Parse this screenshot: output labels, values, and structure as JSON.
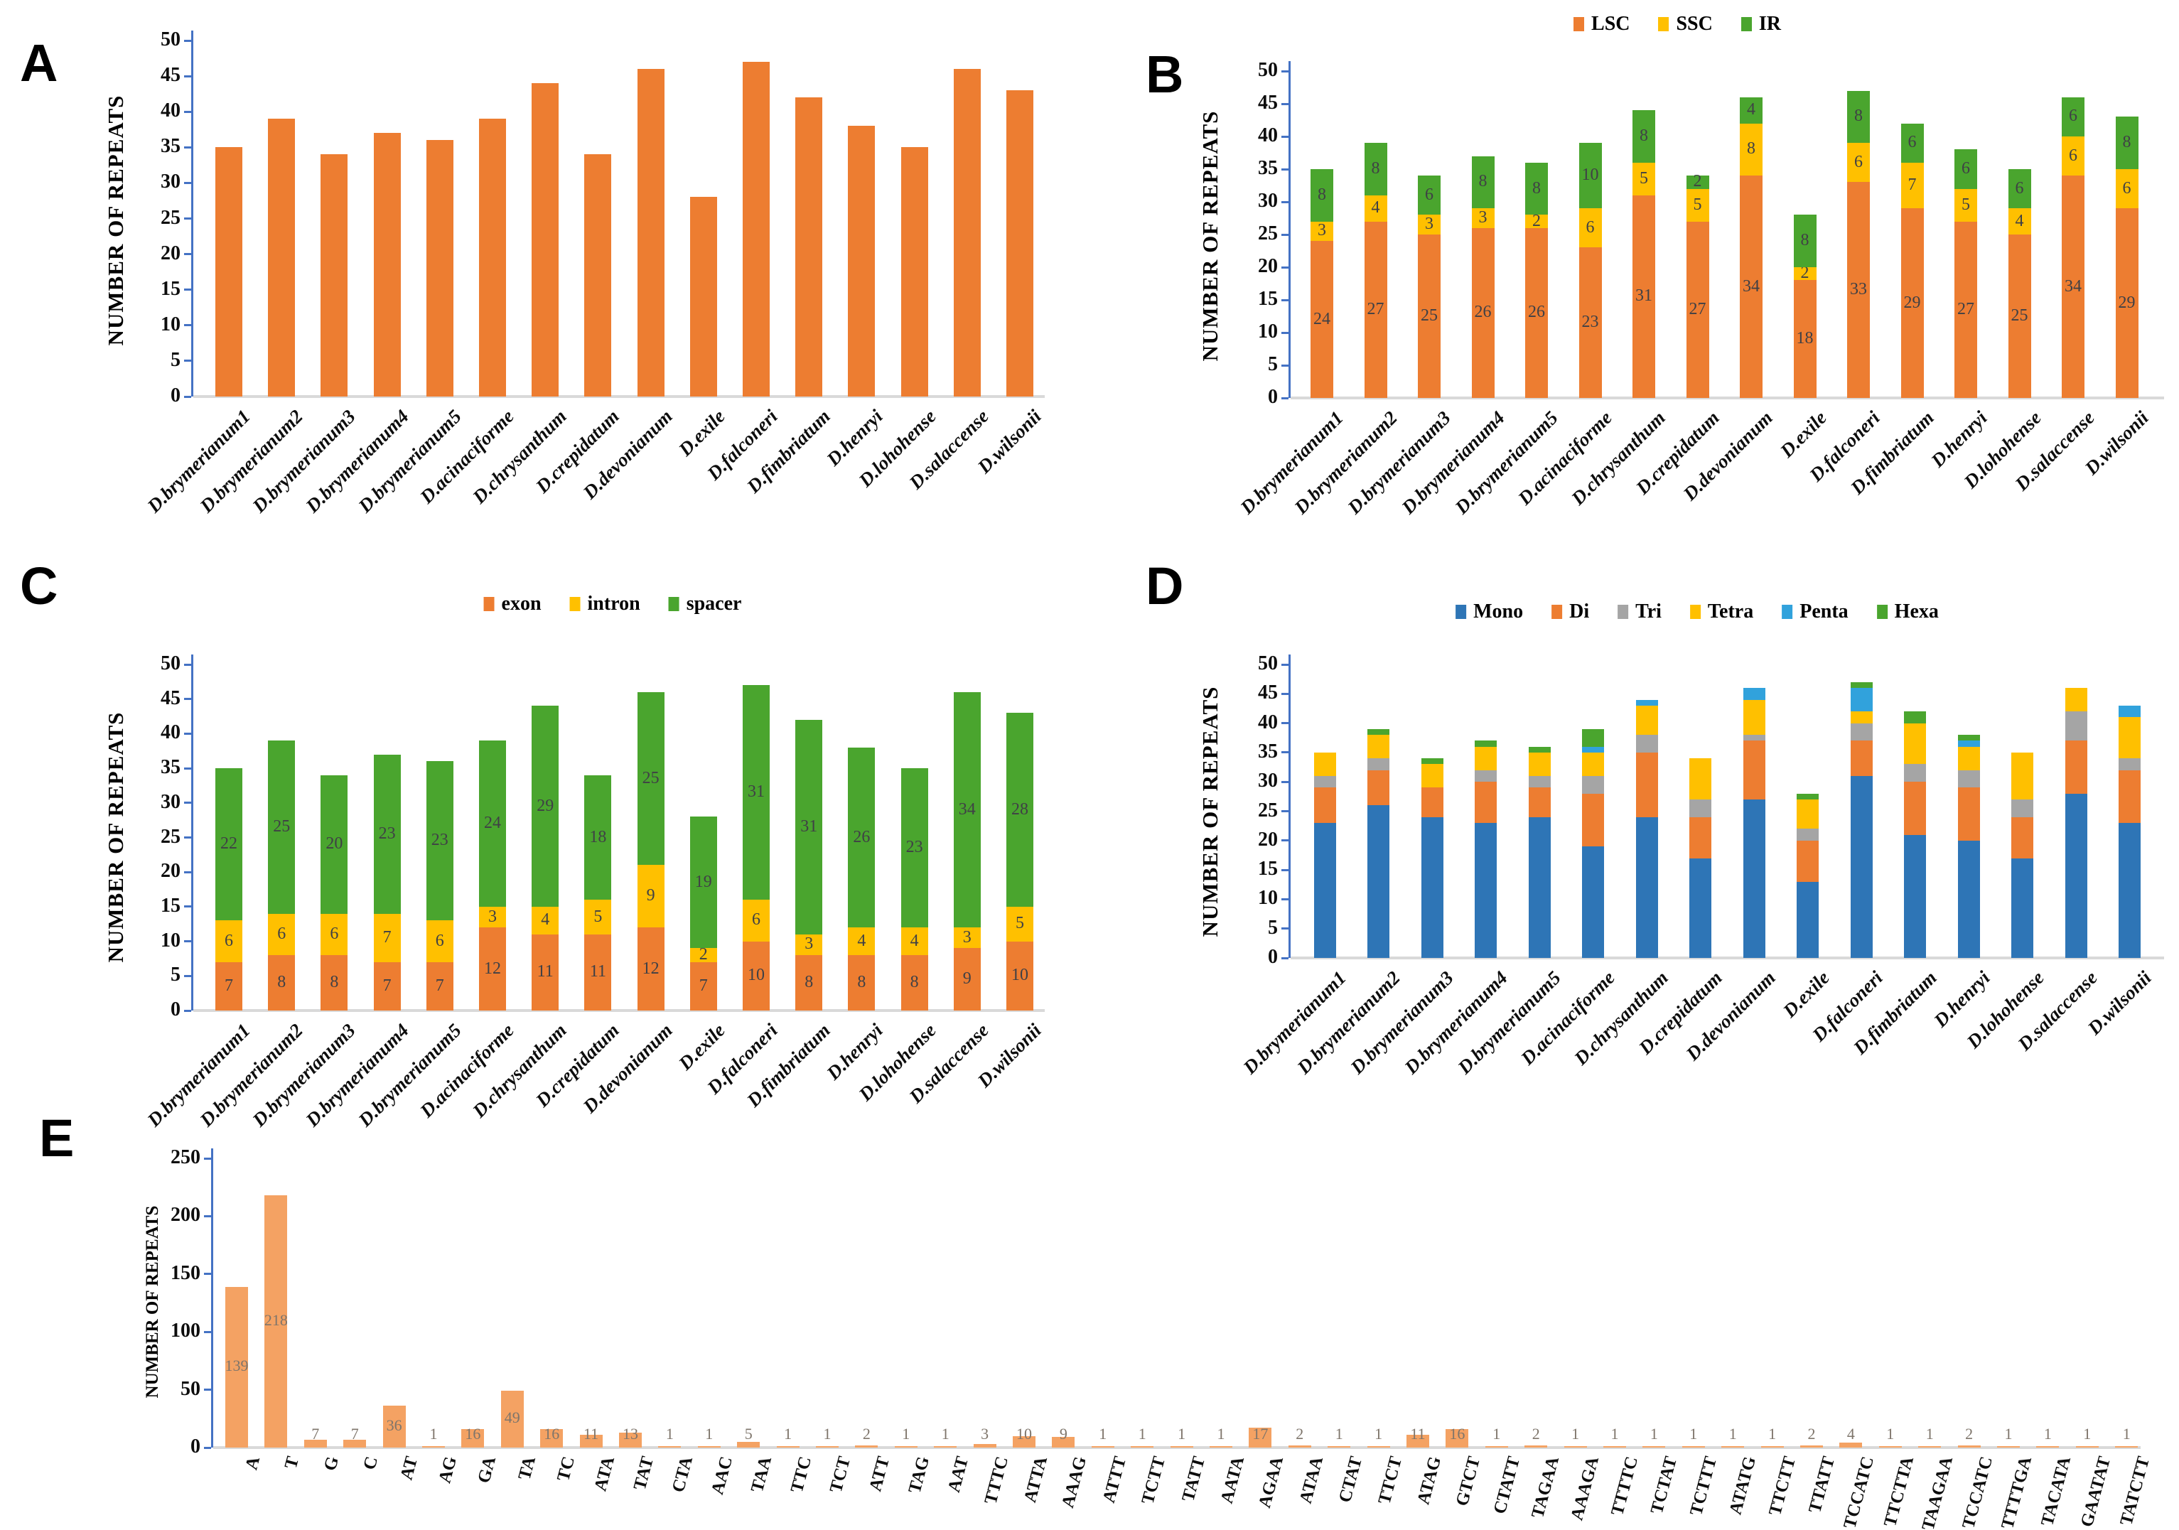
{
  "panels": [
    {
      "letter": "A"
    },
    {
      "letter": "B"
    },
    {
      "letter": "C"
    },
    {
      "letter": "D"
    },
    {
      "letter": "E"
    }
  ],
  "colors": {
    "orange": "#ED7D31",
    "yellow": "#FFC000",
    "green": "#4AA52E",
    "blue": "#2E75B6",
    "light_blue": "#31A2DC",
    "gray": "#A5A5A5",
    "light_orange": "#F4A263",
    "axis_blue": "#4472C4",
    "baseline_gray": "#D9D9D9"
  },
  "species": [
    "D.brymerianum1",
    "D.brymerianum2",
    "D.brymerianum3",
    "D.brymerianum4",
    "D.brymerianum5",
    "D.acinaciforme",
    "D.chrysanthum",
    "D.crepidatum",
    "D.devonianum",
    "D.exile",
    "D.falconeri",
    "D.fimbriatum",
    "D.henryi",
    "D.lohohense",
    "D.salaccense",
    "D.wilsonii"
  ],
  "chart_data": [
    {
      "panel": "A",
      "type": "bar",
      "ylabel": "NUMBER OF REPEATS",
      "ylim": [
        0,
        50
      ],
      "ytick_step": 5,
      "grid": false,
      "legend_position": null,
      "data_labels": false,
      "bar_color": "#ED7D31",
      "categories": [
        "D.brymerianum1",
        "D.brymerianum2",
        "D.brymerianum3",
        "D.brymerianum4",
        "D.brymerianum5",
        "D.acinaciforme",
        "D.chrysanthum",
        "D.crepidatum",
        "D.devonianum",
        "D.exile",
        "D.falconeri",
        "D.fimbriatum",
        "D.henryi",
        "D.lohohense",
        "D.salaccense",
        "D.wilsonii"
      ],
      "values": [
        35,
        39,
        34,
        37,
        36,
        39,
        44,
        34,
        46,
        28,
        47,
        42,
        38,
        35,
        46,
        43
      ]
    },
    {
      "panel": "B",
      "type": "stacked-bar",
      "ylabel": "NUMBER OF REPEATS",
      "ylim": [
        0,
        50
      ],
      "ytick_step": 5,
      "grid": false,
      "legend_position": "top",
      "data_labels": true,
      "categories": [
        "D.brymerianum1",
        "D.brymerianum2",
        "D.brymerianum3",
        "D.brymerianum4",
        "D.brymerianum5",
        "D.acinaciforme",
        "D.chrysanthum",
        "D.crepidatum",
        "D.devonianum",
        "D.exile",
        "D.falconeri",
        "D.fimbriatum",
        "D.henryi",
        "D.lohohense",
        "D.salaccense",
        "D.wilsonii"
      ],
      "series": [
        {
          "name": "LSC",
          "color": "#ED7D31",
          "values": [
            24,
            27,
            25,
            26,
            26,
            23,
            31,
            27,
            34,
            18,
            33,
            29,
            27,
            25,
            34,
            29
          ]
        },
        {
          "name": "SSC",
          "color": "#FFC000",
          "values": [
            3,
            4,
            3,
            3,
            2,
            6,
            5,
            5,
            8,
            2,
            6,
            7,
            5,
            4,
            6,
            6
          ]
        },
        {
          "name": "IR",
          "color": "#4AA52E",
          "values": [
            8,
            8,
            6,
            8,
            8,
            10,
            8,
            2,
            4,
            8,
            8,
            6,
            6,
            6,
            6,
            8
          ]
        }
      ]
    },
    {
      "panel": "C",
      "type": "stacked-bar",
      "ylabel": "NUMBER OF REPEATS",
      "ylim": [
        0,
        50
      ],
      "ytick_step": 5,
      "grid": false,
      "legend_position": "top",
      "data_labels": true,
      "categories": [
        "D.brymerianum1",
        "D.brymerianum2",
        "D.brymerianum3",
        "D.brymerianum4",
        "D.brymerianum5",
        "D.acinaciforme",
        "D.chrysanthum",
        "D.crepidatum",
        "D.devonianum",
        "D.exile",
        "D.falconeri",
        "D.fimbriatum",
        "D.henryi",
        "D.lohohense",
        "D.salaccense",
        "D.wilsonii"
      ],
      "series": [
        {
          "name": "exon",
          "color": "#ED7D31",
          "values": [
            7,
            8,
            8,
            7,
            7,
            12,
            11,
            11,
            12,
            7,
            10,
            8,
            8,
            8,
            9,
            10
          ]
        },
        {
          "name": "intron",
          "color": "#FFC000",
          "values": [
            6,
            6,
            6,
            7,
            6,
            3,
            4,
            5,
            9,
            2,
            6,
            3,
            4,
            4,
            3,
            5
          ]
        },
        {
          "name": "spacer",
          "color": "#4AA52E",
          "values": [
            22,
            25,
            20,
            23,
            23,
            24,
            29,
            18,
            25,
            19,
            31,
            31,
            26,
            23,
            34,
            28
          ]
        }
      ]
    },
    {
      "panel": "D",
      "type": "stacked-bar",
      "ylabel": "NUMBER OF REPEATS",
      "ylim": [
        0,
        50
      ],
      "ytick_step": 5,
      "grid": false,
      "legend_position": "top",
      "data_labels": false,
      "categories": [
        "D.brymerianum1",
        "D.brymerianum2",
        "D.brymerianum3",
        "D.brymerianum4",
        "D.brymerianum5",
        "D.acinaciforme",
        "D.chrysanthum",
        "D.crepidatum",
        "D.devonianum",
        "D.exile",
        "D.falconeri",
        "D.fimbriatum",
        "D.henryi",
        "D.lohohense",
        "D.salaccense",
        "D.wilsonii"
      ],
      "series": [
        {
          "name": "Mono",
          "color": "#2E75B6",
          "values": [
            23,
            26,
            24,
            23,
            24,
            19,
            24,
            17,
            27,
            13,
            31,
            21,
            20,
            17,
            28,
            23
          ]
        },
        {
          "name": "Di",
          "color": "#ED7D31",
          "values": [
            6,
            6,
            5,
            7,
            5,
            9,
            11,
            7,
            10,
            7,
            6,
            9,
            9,
            7,
            9,
            9
          ]
        },
        {
          "name": "Tri",
          "color": "#A5A5A5",
          "values": [
            2,
            2,
            0,
            2,
            2,
            3,
            3,
            3,
            1,
            2,
            3,
            3,
            3,
            3,
            5,
            2
          ]
        },
        {
          "name": "Tetra",
          "color": "#FFC000",
          "values": [
            4,
            4,
            4,
            4,
            4,
            4,
            5,
            7,
            6,
            5,
            2,
            7,
            4,
            8,
            4,
            7
          ]
        },
        {
          "name": "Penta",
          "color": "#31A2DC",
          "values": [
            0,
            0,
            0,
            0,
            0,
            1,
            1,
            0,
            2,
            0,
            4,
            0,
            1,
            0,
            0,
            2
          ]
        },
        {
          "name": "Hexa",
          "color": "#4AA52E",
          "values": [
            0,
            1,
            1,
            1,
            1,
            3,
            0,
            0,
            0,
            1,
            1,
            2,
            1,
            0,
            0,
            0
          ]
        }
      ]
    },
    {
      "panel": "E",
      "type": "bar",
      "ylabel": "NUMBER OF REPEATS",
      "ylim": [
        0,
        250
      ],
      "ytick_step": 50,
      "grid": false,
      "legend_position": null,
      "data_labels": true,
      "bar_color": "#F4A263",
      "categories": [
        "A",
        "T",
        "G",
        "C",
        "AT",
        "AG",
        "GA",
        "TA",
        "TC",
        "ATA",
        "TAT",
        "CTA",
        "AAC",
        "TAA",
        "TTC",
        "TCT",
        "ATT",
        "TAG",
        "AAT",
        "TTTC",
        "ATTA",
        "AAAG",
        "ATTT",
        "TCTT",
        "TATT",
        "AATA",
        "AGAA",
        "ATAA",
        "CTAT",
        "TTCT",
        "ATAG",
        "GTCT",
        "CTATT",
        "TAGAA",
        "AAAGA",
        "TTTTC",
        "TCTAT",
        "TCTTT",
        "ATATG",
        "TTCTT",
        "TTATT",
        "TCCATC",
        "TTCTTA",
        "TAAGAA",
        "TCCATC",
        "TTTTGA",
        "TACATA",
        "GAATAT",
        "TATCTT"
      ],
      "values": [
        139,
        218,
        7,
        7,
        36,
        1,
        16,
        49,
        16,
        11,
        13,
        1,
        1,
        5,
        1,
        1,
        2,
        1,
        1,
        3,
        10,
        9,
        1,
        1,
        1,
        1,
        17,
        2,
        1,
        1,
        11,
        16,
        1,
        2,
        1,
        1,
        1,
        1,
        1,
        1,
        2,
        4,
        1,
        1,
        2,
        1,
        1,
        1,
        1
      ]
    }
  ]
}
